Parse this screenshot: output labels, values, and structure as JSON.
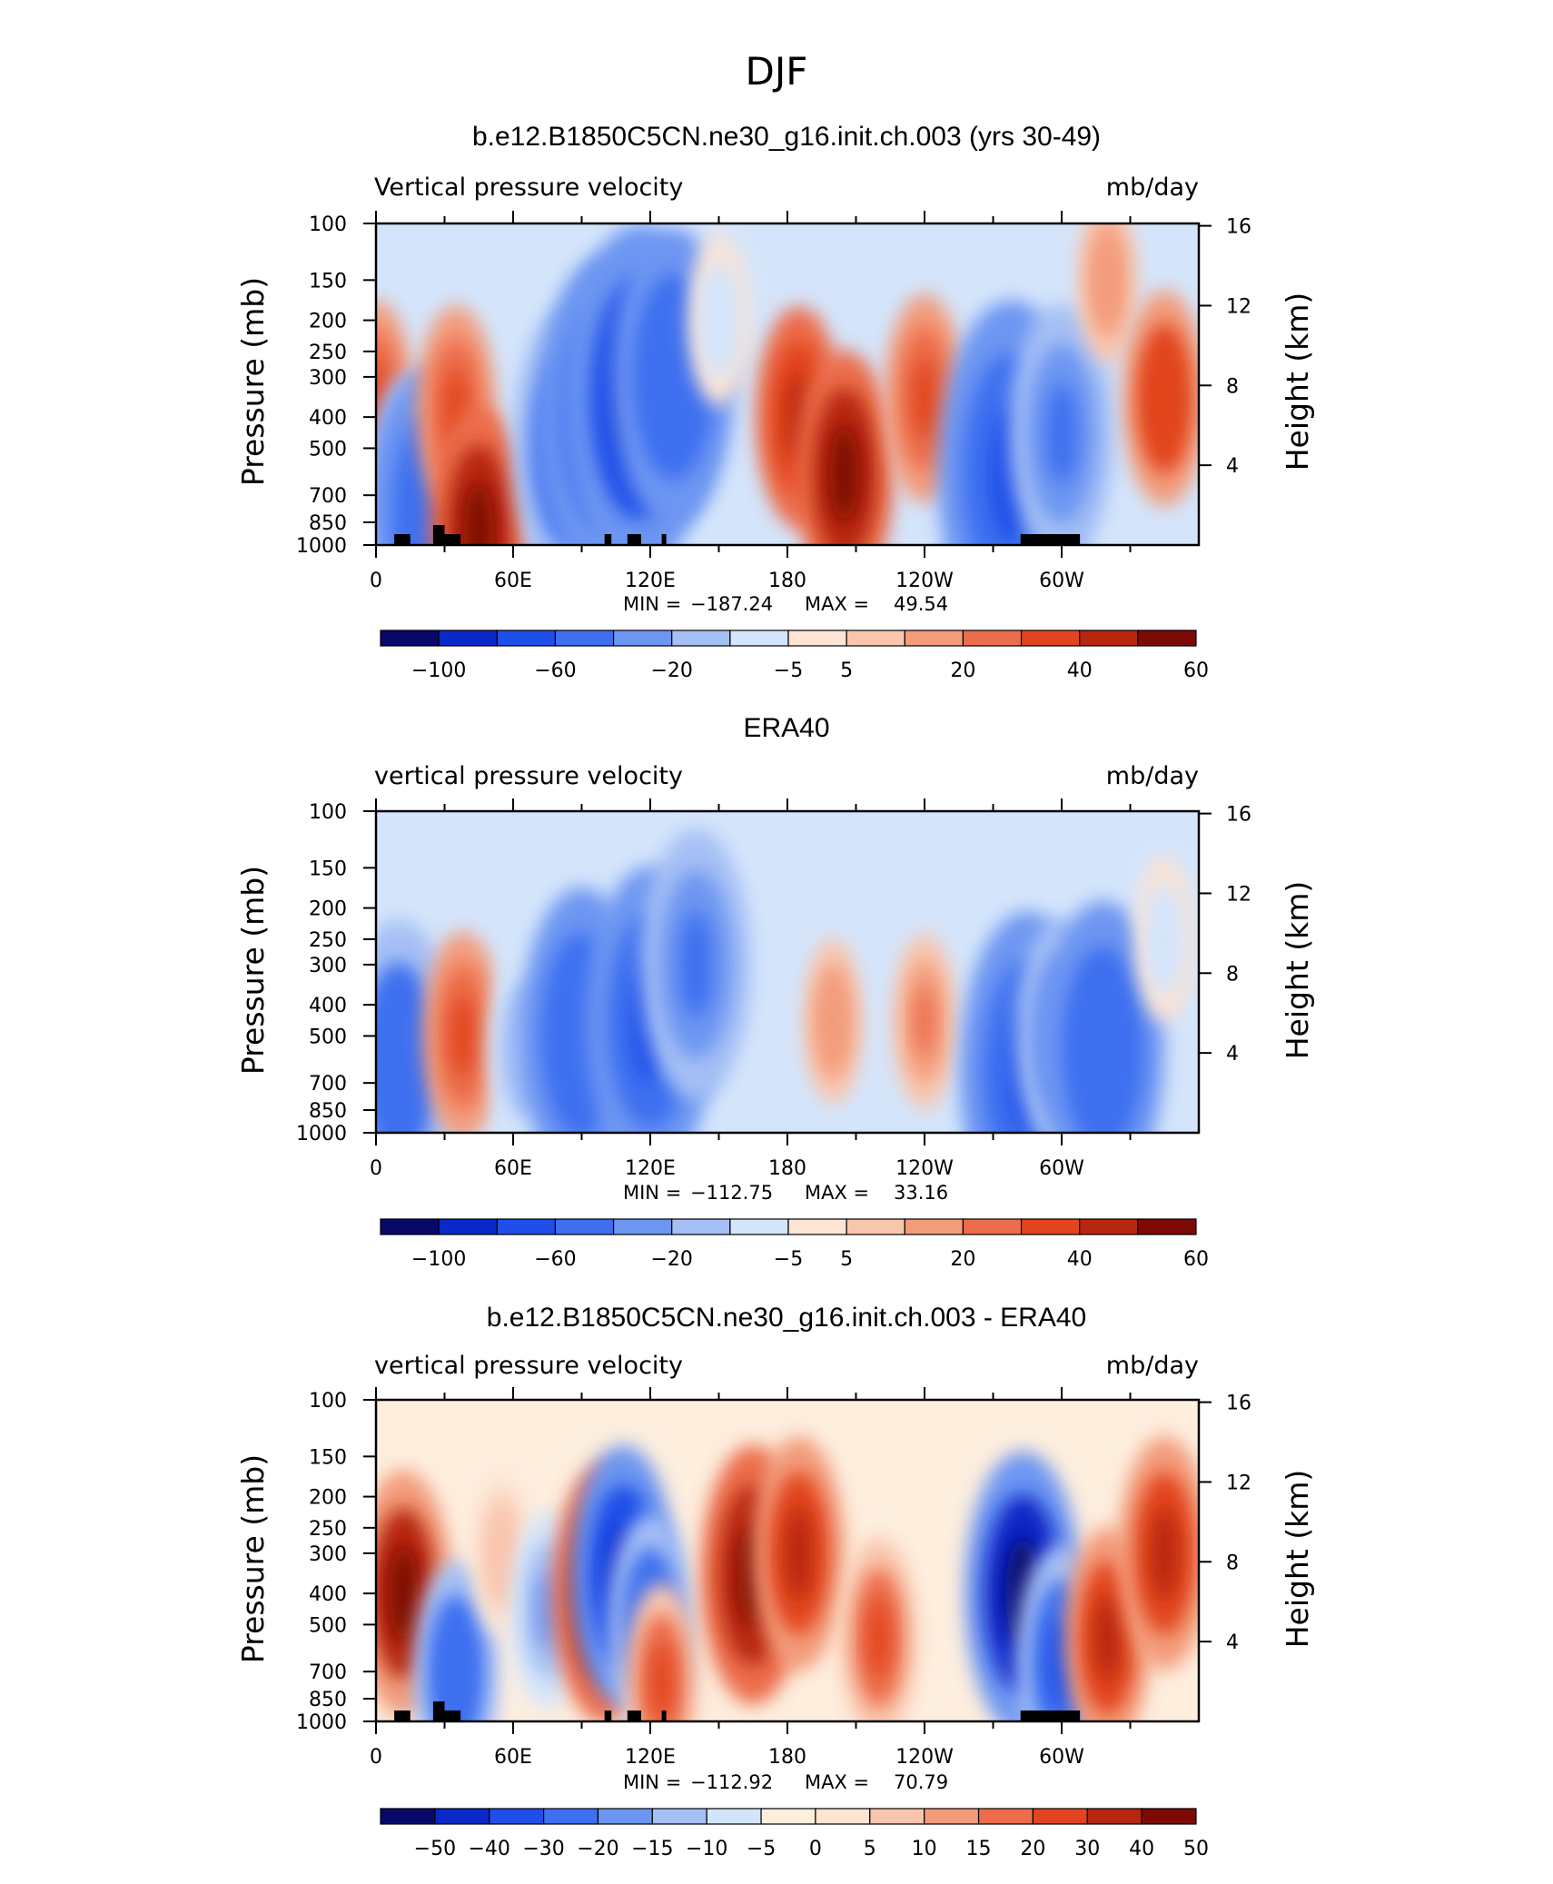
{
  "figure": {
    "title": "DJF"
  },
  "colors": {
    "full_fill": [
      "#08086b",
      "#0b28c8",
      "#1f4ee8",
      "#3d6ff0",
      "#6d96f2",
      "#a5c0f5",
      "#d4e5fb",
      "#fde4d3",
      "#f9c6ad",
      "#f39c7c",
      "#ec6d4b",
      "#e2441f",
      "#b7260e",
      "#7d0a05"
    ],
    "diff_fill": [
      "#08086b",
      "#0b28c8",
      "#1f4ee8",
      "#3d6ff0",
      "#6d96f2",
      "#a5c0f5",
      "#d4e5fb",
      "#fdeede",
      "#fde4d3",
      "#f9c6ad",
      "#f39c7c",
      "#ec6d4b",
      "#e2441f",
      "#b7260e",
      "#7d0a05"
    ]
  },
  "chart_data": [
    {
      "type": "heatmap",
      "title": "b.e12.B1850C5CN.ne30_g16.init.ch.003 (yrs 30-49)",
      "left_string": "Vertical pressure velocity",
      "right_string": "mb/day",
      "ylabel": "Pressure (mb)",
      "y2label": "Height (km)",
      "x_ticks": [
        "0",
        "60E",
        "120E",
        "180",
        "120W",
        "60W"
      ],
      "y_ticks": [
        "100",
        "150",
        "200",
        "250",
        "300",
        "400",
        "500",
        "700",
        "850",
        "1000"
      ],
      "y2_ticks": [
        "16",
        "12",
        "8",
        "4"
      ],
      "stats": {
        "min_label": "MIN =",
        "min": "−187.24",
        "max_label": "MAX =",
        "max": "49.54"
      },
      "colorbar_labels": [
        "−100",
        "−60",
        "−20",
        "−5",
        "5",
        "20",
        "40",
        "60"
      ],
      "colorbar_levels": [
        -120,
        -100,
        -80,
        -60,
        -40,
        -20,
        -10,
        -5,
        0,
        5,
        10,
        20,
        30,
        40,
        50,
        60,
        70
      ],
      "features": [
        {
          "lon": 0,
          "p": 350,
          "value": 20
        },
        {
          "lon": 15,
          "p": 650,
          "value": -30
        },
        {
          "lon": 25,
          "p": 800,
          "value": -60
        },
        {
          "lon": 35,
          "p": 380,
          "value": 25
        },
        {
          "lon": 45,
          "p": 900,
          "value": 40
        },
        {
          "lon": 85,
          "p": 500,
          "value": -55
        },
        {
          "lon": 100,
          "p": 400,
          "value": -70
        },
        {
          "lon": 115,
          "p": 350,
          "value": -85
        },
        {
          "lon": 130,
          "p": 300,
          "value": -60
        },
        {
          "lon": 150,
          "p": 200,
          "value": -10
        },
        {
          "lon": 185,
          "p": 400,
          "value": 30
        },
        {
          "lon": 205,
          "p": 600,
          "value": 40
        },
        {
          "lon": 240,
          "p": 350,
          "value": 25
        },
        {
          "lon": 278,
          "p": 600,
          "value": -80
        },
        {
          "lon": 300,
          "p": 450,
          "value": -45
        },
        {
          "lon": 320,
          "p": 150,
          "value": 8
        },
        {
          "lon": 345,
          "p": 350,
          "value": 28
        }
      ]
    },
    {
      "type": "heatmap",
      "title": "ERA40",
      "left_string": "vertical pressure velocity",
      "right_string": "mb/day",
      "ylabel": "Pressure (mb)",
      "y2label": "Height (km)",
      "x_ticks": [
        "0",
        "60E",
        "120E",
        "180",
        "120W",
        "60W"
      ],
      "y_ticks": [
        "100",
        "150",
        "200",
        "250",
        "300",
        "400",
        "500",
        "700",
        "850",
        "1000"
      ],
      "y2_ticks": [
        "16",
        "12",
        "8",
        "4"
      ],
      "stats": {
        "min_label": "MIN =",
        "min": "−112.75",
        "max_label": "MAX =",
        "max": "33.16"
      },
      "colorbar_labels": [
        "−100",
        "−60",
        "−20",
        "−5",
        "5",
        "20",
        "40",
        "60"
      ],
      "colorbar_levels": [
        -120,
        -100,
        -80,
        -60,
        -40,
        -20,
        -10,
        -5,
        0,
        5,
        10,
        20,
        30,
        40,
        50,
        60,
        70
      ],
      "features": [
        {
          "lon": 10,
          "p": 600,
          "value": -55
        },
        {
          "lon": 38,
          "p": 500,
          "value": 25
        },
        {
          "lon": 65,
          "p": 550,
          "value": -20
        },
        {
          "lon": 90,
          "p": 500,
          "value": -60
        },
        {
          "lon": 120,
          "p": 450,
          "value": -65
        },
        {
          "lon": 140,
          "p": 300,
          "value": -50
        },
        {
          "lon": 200,
          "p": 450,
          "value": 8
        },
        {
          "lon": 240,
          "p": 450,
          "value": 12
        },
        {
          "lon": 285,
          "p": 650,
          "value": -70
        },
        {
          "lon": 300,
          "p": 500,
          "value": -35
        },
        {
          "lon": 318,
          "p": 550,
          "value": -60
        },
        {
          "lon": 345,
          "p": 250,
          "value": -8
        }
      ]
    },
    {
      "type": "heatmap",
      "title": "b.e12.B1850C5CN.ne30_g16.init.ch.003 - ERA40",
      "left_string": "vertical pressure velocity",
      "right_string": "mb/day",
      "ylabel": "Pressure (mb)",
      "y2label": "Height (km)",
      "x_ticks": [
        "0",
        "60E",
        "120E",
        "180",
        "120W",
        "60W"
      ],
      "y_ticks": [
        "100",
        "150",
        "200",
        "250",
        "300",
        "400",
        "500",
        "700",
        "850",
        "1000"
      ],
      "y2_ticks": [
        "16",
        "12",
        "8",
        "4"
      ],
      "stats": {
        "min_label": "MIN =",
        "min": "−112.92",
        "max_label": "MAX =",
        "max": "70.79"
      },
      "colorbar_labels": [
        "−50",
        "−40",
        "−30",
        "−20",
        "−15",
        "−10",
        "−5",
        "0",
        "5",
        "10",
        "15",
        "20",
        "30",
        "40",
        "50"
      ],
      "colorbar_levels": [
        -60,
        -50,
        -40,
        -30,
        -20,
        -15,
        -10,
        -5,
        0,
        5,
        10,
        15,
        20,
        30,
        40,
        50,
        60
      ],
      "features": [
        {
          "lon": 12,
          "p": 400,
          "value": 40
        },
        {
          "lon": 35,
          "p": 700,
          "value": -30
        },
        {
          "lon": 55,
          "p": 300,
          "value": 8
        },
        {
          "lon": 75,
          "p": 450,
          "value": -20
        },
        {
          "lon": 100,
          "p": 400,
          "value": 45
        },
        {
          "lon": 108,
          "p": 350,
          "value": -45
        },
        {
          "lon": 120,
          "p": 500,
          "value": -30
        },
        {
          "lon": 125,
          "p": 750,
          "value": 20
        },
        {
          "lon": 165,
          "p": 350,
          "value": 45
        },
        {
          "lon": 185,
          "p": 300,
          "value": 35
        },
        {
          "lon": 220,
          "p": 550,
          "value": 22
        },
        {
          "lon": 283,
          "p": 400,
          "value": -55
        },
        {
          "lon": 300,
          "p": 650,
          "value": -35
        },
        {
          "lon": 320,
          "p": 550,
          "value": 30
        },
        {
          "lon": 345,
          "p": 300,
          "value": 35
        }
      ]
    }
  ]
}
